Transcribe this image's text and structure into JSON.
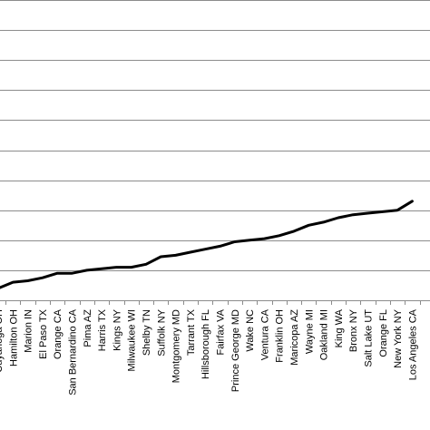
{
  "chart_data": {
    "type": "line",
    "title": "",
    "xlabel": "",
    "ylabel": "",
    "grid": true,
    "legend": "none",
    "line_color": "#000000",
    "grid_color": "#8c8c8c",
    "ylim": [
      0,
      10
    ],
    "y_gridlines": [
      1,
      2,
      3,
      4,
      5,
      6,
      7,
      8,
      9,
      10
    ],
    "categories": [
      "Cuyahoga OH",
      "Hamilton OH",
      "Marion IN",
      "El Paso TX",
      "Orange CA",
      "San Bernardino CA",
      "Pima AZ",
      "Harris TX",
      "Kings NY",
      "Milwaukee WI",
      "Shelby TN",
      "Suffolk NY",
      "Montgomery MD",
      "Tarrant TX",
      "Hillsborough FL",
      "Fairfax VA",
      "Prince George MD",
      "Wake NC",
      "Ventura CA",
      "Franklin OH",
      "Maricopa AZ",
      "Wayne MI",
      "Oakland MI",
      "King WA",
      "Bronx NY",
      "Salt Lake UT",
      "Orange FL",
      "New York NY",
      "Los Angeles CA"
    ],
    "series": [
      {
        "values": [
          0.4,
          0.6,
          0.65,
          0.75,
          0.9,
          0.9,
          1.0,
          1.05,
          1.1,
          1.1,
          1.2,
          1.45,
          1.5,
          1.6,
          1.7,
          1.8,
          1.95,
          2.0,
          2.05,
          2.15,
          2.3,
          2.5,
          2.6,
          2.75,
          2.85,
          2.9,
          2.95,
          3.0,
          3.3
        ]
      }
    ]
  }
}
